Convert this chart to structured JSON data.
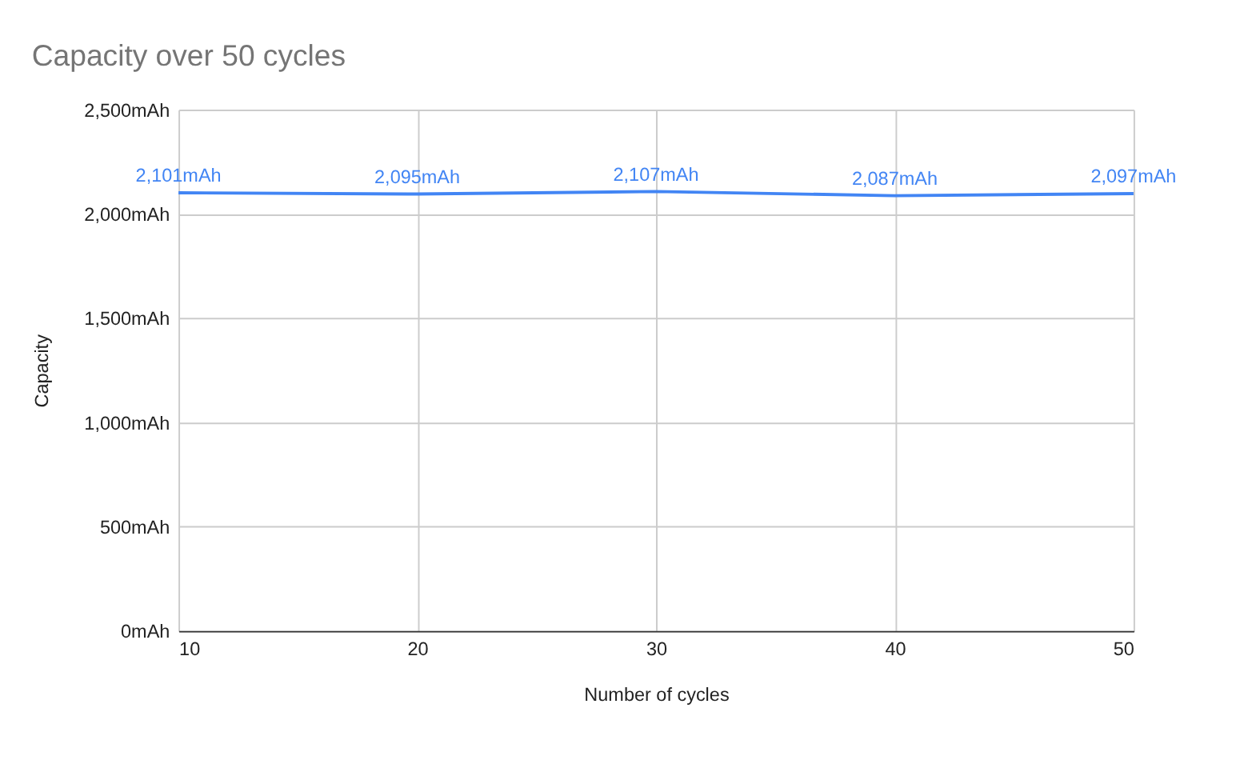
{
  "chart_data": {
    "type": "line",
    "title": "Capacity over 50 cycles",
    "xlabel": "Number of cycles",
    "ylabel": "Capacity",
    "x": [
      10,
      20,
      30,
      40,
      50
    ],
    "series": [
      {
        "color": "#4285f4",
        "values": [
          2101,
          2095,
          2107,
          2087,
          2097
        ],
        "value_labels": [
          "2,101mAh",
          "2,095mAh",
          "2,107mAh",
          "2,087mAh",
          "2,097mAh"
        ]
      }
    ],
    "xlim": [
      10,
      50
    ],
    "xticks": [
      10,
      20,
      30,
      40,
      50
    ],
    "ylim": [
      0,
      2500
    ],
    "yticks": [
      {
        "value": 0,
        "label": "0mAh"
      },
      {
        "value": 500,
        "label": "500mAh"
      },
      {
        "value": 1000,
        "label": "1,000mAh"
      },
      {
        "value": 1500,
        "label": "1,500mAh"
      },
      {
        "value": 2000,
        "label": "2,000mAh"
      },
      {
        "value": 2500,
        "label": "2,500mAh"
      }
    ],
    "grid": true,
    "marker": "none",
    "line_style": "solid"
  }
}
